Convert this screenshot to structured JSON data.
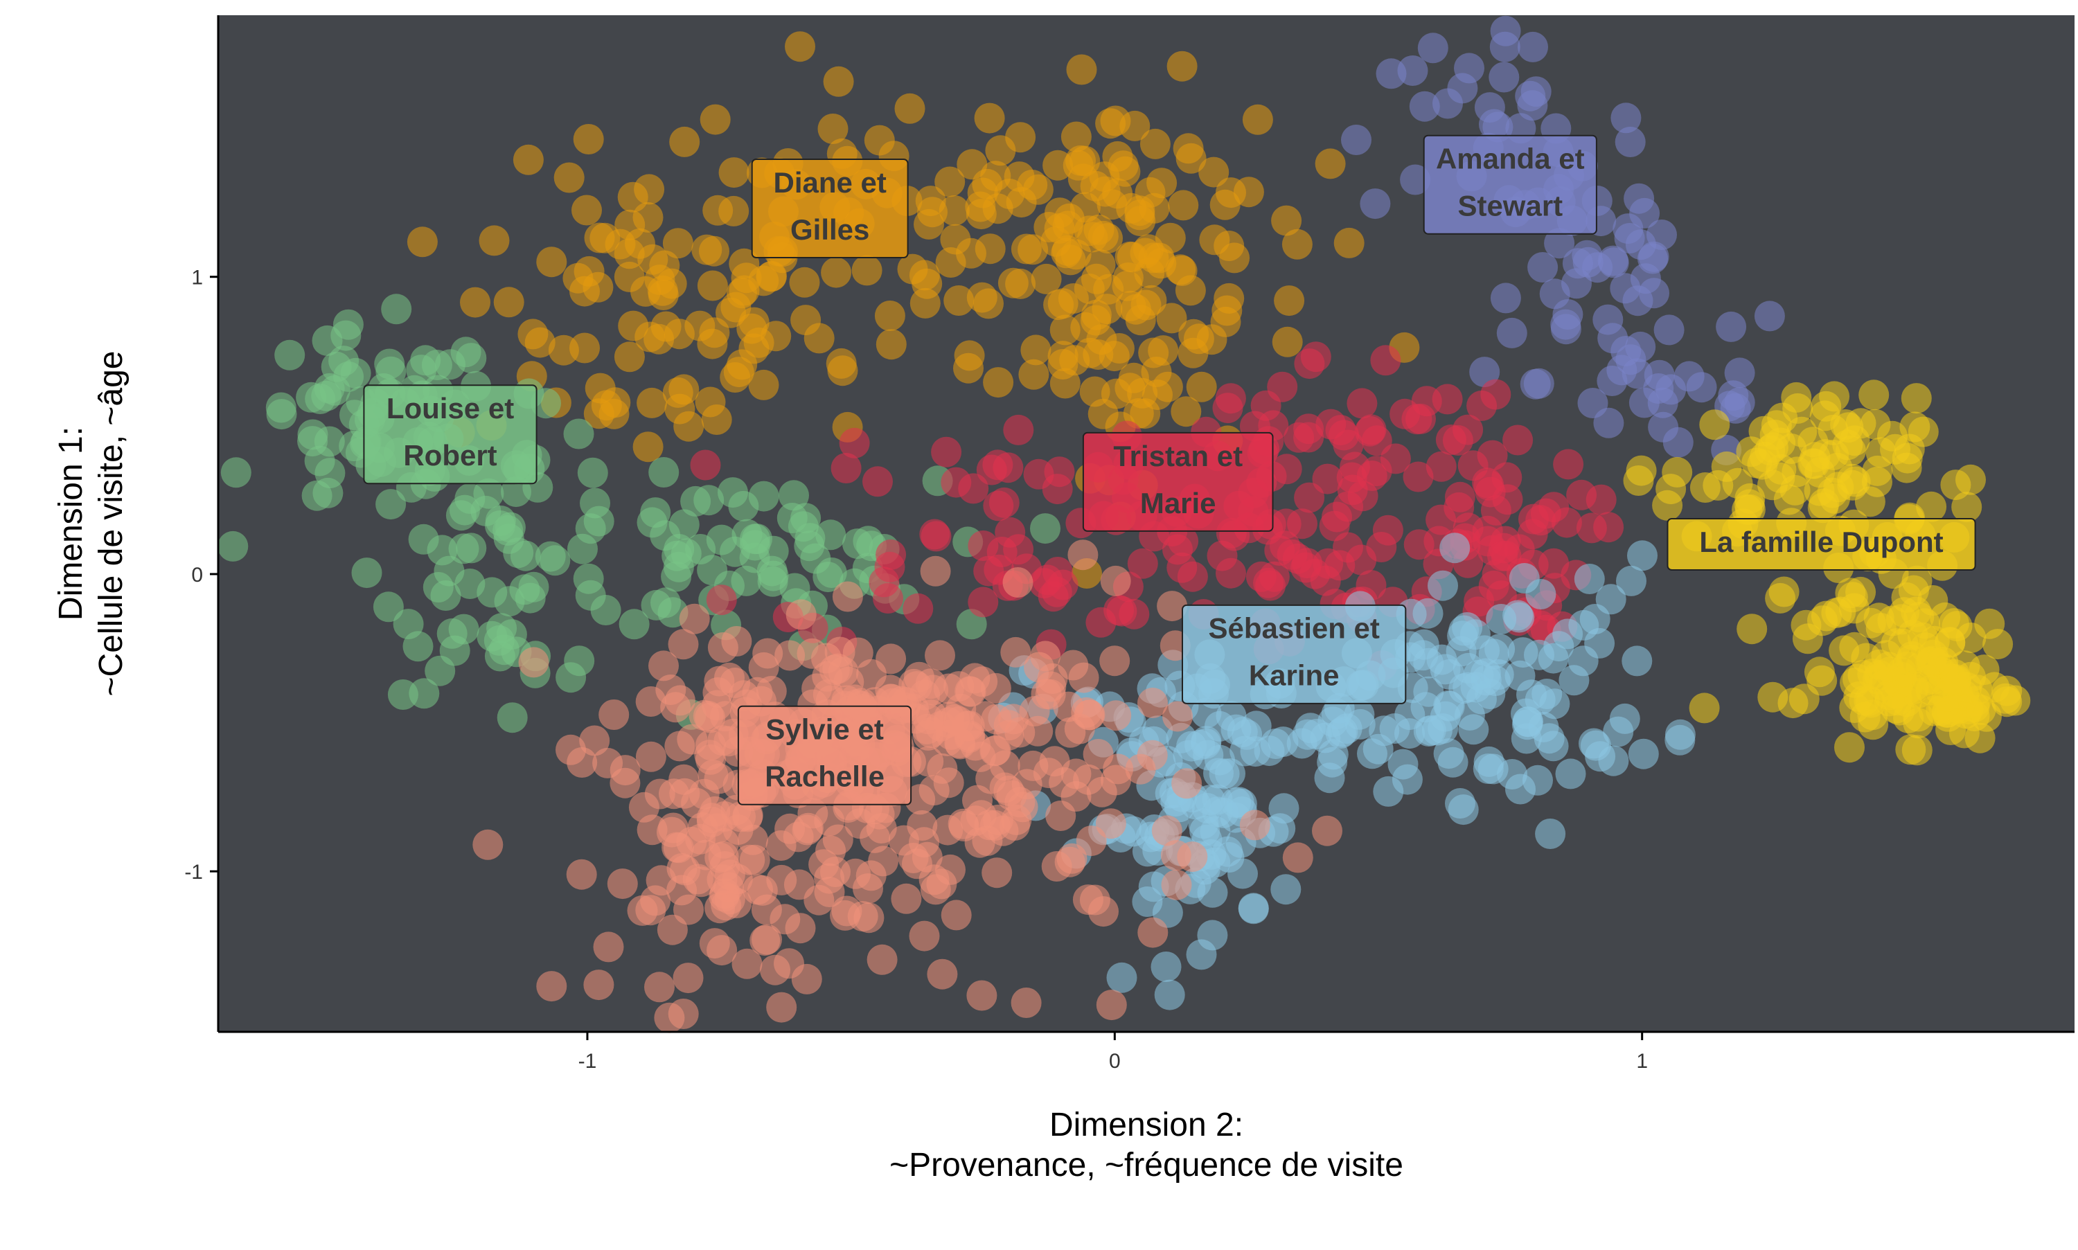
{
  "chart_data": {
    "type": "scatter",
    "title": "",
    "xlabel_line1": "Dimension 2:",
    "xlabel_line2": "~Provenance, ~fréquence de visite",
    "ylabel_line1": "Dimension 1:",
    "ylabel_line2": "~Cellule de visite, ~âge",
    "xlim": [
      -1.7,
      1.82
    ],
    "ylim": [
      -1.54,
      1.88
    ],
    "xticks": [
      -1,
      0,
      1
    ],
    "yticks": [
      -1,
      0,
      1
    ],
    "xtick_labels": [
      "-1",
      "0",
      "1"
    ],
    "ytick_labels": [
      "-1",
      "0",
      "1"
    ],
    "grid": false,
    "legend": "none",
    "panel_background": "#43464b",
    "clusters": [
      {
        "name_line1": "Diane et",
        "name_line2": "Gilles",
        "color": "#e69a0f",
        "label_pos": [
          -0.54,
          1.23
        ],
        "spread": [
          [
            -0.42,
            1.15,
            0.28,
            0.25
          ],
          [
            -0.9,
            0.85,
            0.18,
            0.25
          ],
          [
            -0.05,
            1.2,
            0.22,
            0.22
          ],
          [
            0.05,
            0.85,
            0.1,
            0.25
          ]
        ],
        "count": 290
      },
      {
        "name_line1": "Amanda et",
        "name_line2": "Stewart",
        "color": "#7a83c8",
        "label_pos": [
          0.75,
          1.31
        ],
        "spread": [
          [
            0.7,
            1.5,
            0.15,
            0.14
          ],
          [
            0.9,
            1.05,
            0.1,
            0.2
          ],
          [
            1.05,
            0.65,
            0.12,
            0.14
          ]
        ],
        "count": 95
      },
      {
        "name_line1": "Louise et",
        "name_line2": "Robert",
        "color": "#79c487",
        "label_pos": [
          -1.26,
          0.47
        ],
        "spread": [
          [
            -1.4,
            0.5,
            0.12,
            0.16
          ],
          [
            -1.15,
            0.05,
            0.12,
            0.22
          ],
          [
            -0.7,
            0.05,
            0.18,
            0.13
          ]
        ],
        "count": 200
      },
      {
        "name_line1": "Tristan et",
        "name_line2": "Marie",
        "color": "#e0314e",
        "label_pos": [
          0.12,
          0.31
        ],
        "spread": [
          [
            0.35,
            0.0,
            0.22,
            0.17
          ],
          [
            0.4,
            0.45,
            0.2,
            0.15
          ],
          [
            -0.2,
            0.15,
            0.22,
            0.2
          ],
          [
            0.7,
            0.1,
            0.1,
            0.15
          ]
        ],
        "count": 220
      },
      {
        "name_line1": "Sébastien et",
        "name_line2": "Karine",
        "color": "#8dc7e2",
        "label_pos": [
          0.34,
          -0.27
        ],
        "spread": [
          [
            0.35,
            -0.5,
            0.25,
            0.12
          ],
          [
            0.75,
            -0.35,
            0.15,
            0.2
          ],
          [
            0.15,
            -0.85,
            0.1,
            0.18
          ]
        ],
        "count": 250
      },
      {
        "name_line1": "Sylvie et",
        "name_line2": "Rachelle",
        "color": "#f0917a",
        "label_pos": [
          -0.55,
          -0.61
        ],
        "spread": [
          [
            -0.7,
            -0.95,
            0.13,
            0.25
          ],
          [
            -0.25,
            -0.75,
            0.22,
            0.28
          ],
          [
            -0.5,
            -0.45,
            0.2,
            0.12
          ]
        ],
        "count": 420
      },
      {
        "name": "La famille Dupont",
        "color": "#f2cc1b",
        "label_pos": [
          1.34,
          0.1
        ],
        "spread": [
          [
            1.28,
            0.35,
            0.12,
            0.12
          ],
          [
            1.45,
            -0.15,
            0.1,
            0.2
          ],
          [
            1.55,
            -0.4,
            0.08,
            0.08
          ]
        ],
        "count": 240
      }
    ]
  }
}
